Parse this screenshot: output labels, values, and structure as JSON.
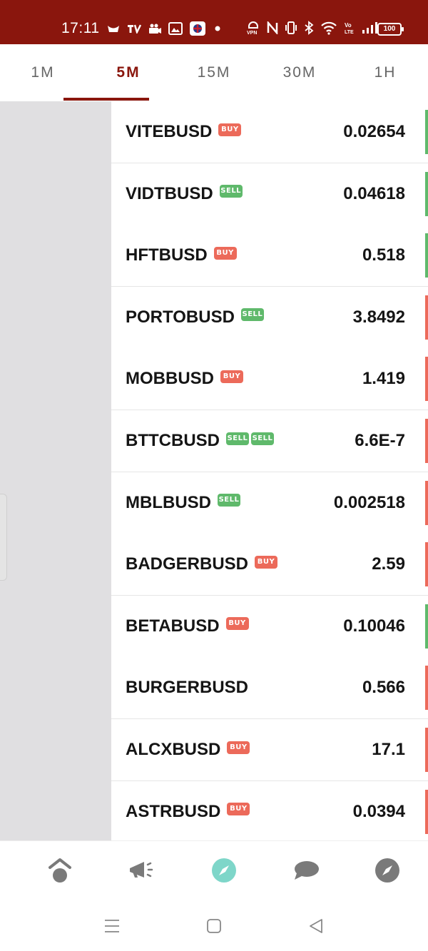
{
  "status_bar": {
    "time": "17:11",
    "battery": "100",
    "left_icons": [
      "notification-icon",
      "tv-icon",
      "camera-icon",
      "gallery-icon",
      "flag-icon",
      "dot-icon"
    ],
    "right_icons": [
      "vpn-icon",
      "nfc-icon",
      "vibrate-icon",
      "bluetooth-icon",
      "wifi-icon",
      "volte-icon",
      "signal-icon"
    ]
  },
  "tabs": [
    {
      "label": "1M",
      "active": false
    },
    {
      "label": "5M",
      "active": true
    },
    {
      "label": "15M",
      "active": false
    },
    {
      "label": "30M",
      "active": false
    },
    {
      "label": "1H",
      "active": false
    }
  ],
  "colors": {
    "brand": "#8a160d",
    "buy": "#ec6a5a",
    "sell": "#5fb96b",
    "nav_active": "#7ed6c9",
    "nav_inactive": "#7a7a7a"
  },
  "rows": [
    {
      "symbol": "VITEBUSD",
      "badges": [
        "BUY"
      ],
      "price": "0.02654",
      "edge": "green"
    },
    {
      "symbol": "VIDTBUSD",
      "badges": [
        "SELL"
      ],
      "price": "0.04618",
      "edge": "green"
    },
    {
      "symbol": "HFTBUSD",
      "badges": [
        "BUY"
      ],
      "price": "0.518",
      "edge": "green"
    },
    {
      "symbol": "PORTOBUSD",
      "badges": [
        "SELL"
      ],
      "price": "3.8492",
      "edge": "red"
    },
    {
      "symbol": "MOBBUSD",
      "badges": [
        "BUY"
      ],
      "price": "1.419",
      "edge": "red"
    },
    {
      "symbol": "BTTCBUSD",
      "badges": [
        "SELL",
        "SELL"
      ],
      "price": "6.6E-7",
      "edge": "red"
    },
    {
      "symbol": "MBLBUSD",
      "badges": [
        "SELL"
      ],
      "price": "0.002518",
      "edge": "red"
    },
    {
      "symbol": "BADGERBUSD",
      "badges": [
        "BUY"
      ],
      "price": "2.59",
      "edge": "red"
    },
    {
      "symbol": "BETABUSD",
      "badges": [
        "BUY"
      ],
      "price": "0.10046",
      "edge": "green"
    },
    {
      "symbol": "BURGERBUSD",
      "badges": [],
      "price": "0.566",
      "edge": "red"
    },
    {
      "symbol": "ALCXBUSD",
      "badges": [
        "BUY"
      ],
      "price": "17.1",
      "edge": "red"
    },
    {
      "symbol": "ASTRBUSD",
      "badges": [
        "BUY"
      ],
      "price": "0.0394",
      "edge": "red"
    }
  ],
  "bottom_nav": [
    {
      "icon": "home-icon",
      "active": false
    },
    {
      "icon": "megaphone-icon",
      "active": false
    },
    {
      "icon": "compass-icon",
      "active": true
    },
    {
      "icon": "chat-icon",
      "active": false
    },
    {
      "icon": "explore-icon",
      "active": false
    }
  ],
  "system_nav": [
    "menu-icon",
    "home-square-icon",
    "back-icon"
  ]
}
